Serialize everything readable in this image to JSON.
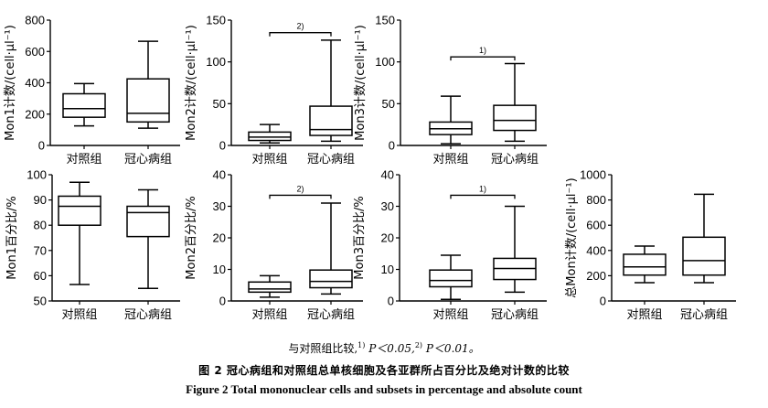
{
  "chart_data": [
    {
      "type": "box",
      "ylabel": "Mon1计数/(cell·μl⁻¹)",
      "ylim": [
        0,
        800
      ],
      "yticks": [
        "0",
        "200",
        "400",
        "600",
        "800"
      ],
      "categories": [
        "对照组",
        "冠心病组"
      ],
      "boxes": [
        {
          "min": 125,
          "q1": 180,
          "median": 235,
          "q3": 330,
          "max": 395
        },
        {
          "min": 110,
          "q1": 150,
          "median": 205,
          "q3": 425,
          "max": 665
        }
      ],
      "significance": null
    },
    {
      "type": "box",
      "ylabel": "Mon2计数/(cell·μl⁻¹)",
      "ylim": [
        0,
        150
      ],
      "yticks": [
        "0",
        "50",
        "100",
        "150"
      ],
      "categories": [
        "对照组",
        "冠心病组"
      ],
      "boxes": [
        {
          "min": 3,
          "q1": 6,
          "median": 10,
          "q3": 16,
          "max": 25
        },
        {
          "min": 5,
          "q1": 12,
          "median": 19,
          "q3": 47,
          "max": 126
        }
      ],
      "significance": {
        "label": "2)",
        "level": 135
      }
    },
    {
      "type": "box",
      "ylabel": "Mon3计数/(cell·μl⁻¹)",
      "ylim": [
        0,
        150
      ],
      "yticks": [
        "0",
        "50",
        "100",
        "150"
      ],
      "categories": [
        "对照组",
        "冠心病组"
      ],
      "boxes": [
        {
          "min": 2,
          "q1": 13,
          "median": 20,
          "q3": 28,
          "max": 59
        },
        {
          "min": 5,
          "q1": 18,
          "median": 30,
          "q3": 48,
          "max": 98
        }
      ],
      "significance": {
        "label": "1)",
        "level": 106
      }
    },
    {
      "type": "box",
      "ylabel": "Mon1百分比/%",
      "ylim": [
        50,
        100
      ],
      "yticks": [
        "50",
        "60",
        "70",
        "80",
        "90",
        "100"
      ],
      "categories": [
        "对照组",
        "冠心病组"
      ],
      "boxes": [
        {
          "min": 56.5,
          "q1": 80,
          "median": 87.5,
          "q3": 91.5,
          "max": 97
        },
        {
          "min": 55,
          "q1": 75.5,
          "median": 85,
          "q3": 87.5,
          "max": 94
        }
      ],
      "significance": null
    },
    {
      "type": "box",
      "ylabel": "Mon2百分比/%",
      "ylim": [
        0,
        40
      ],
      "yticks": [
        "0",
        "10",
        "20",
        "30",
        "40"
      ],
      "categories": [
        "对照组",
        "冠心病组"
      ],
      "boxes": [
        {
          "min": 1.2,
          "q1": 2.8,
          "median": 3.8,
          "q3": 6,
          "max": 8
        },
        {
          "min": 2.2,
          "q1": 4.2,
          "median": 6.2,
          "q3": 9.8,
          "max": 31
        }
      ],
      "significance": {
        "label": "2)",
        "level": 33.5
      }
    },
    {
      "type": "box",
      "ylabel": "Mon3百分比/%",
      "ylim": [
        0,
        40
      ],
      "yticks": [
        "0",
        "10",
        "20",
        "30",
        "40"
      ],
      "categories": [
        "对照组",
        "冠心病组"
      ],
      "boxes": [
        {
          "min": 0.5,
          "q1": 4.5,
          "median": 6.5,
          "q3": 9.8,
          "max": 14.5
        },
        {
          "min": 2.8,
          "q1": 6.8,
          "median": 10.3,
          "q3": 13.5,
          "max": 30
        }
      ],
      "significance": {
        "label": "1)",
        "level": 33.5
      }
    },
    {
      "type": "box",
      "ylabel": "总Mon计数/(cell·μl⁻¹)",
      "ylim": [
        0,
        1000
      ],
      "yticks": [
        "0",
        "200",
        "400",
        "600",
        "800",
        "1000"
      ],
      "categories": [
        "对照组",
        "冠心病组"
      ],
      "boxes": [
        {
          "min": 145,
          "q1": 205,
          "median": 270,
          "q3": 370,
          "max": 435
        },
        {
          "min": 145,
          "q1": 205,
          "median": 320,
          "q3": 505,
          "max": 845
        }
      ],
      "significance": null
    }
  ],
  "captions": {
    "note_text": "与对照组比较,",
    "note_sup1": "1)",
    "note_p1": " P＜0.05,",
    "note_sup2": "2)",
    "note_p2": " P＜0.01。",
    "title_cn": "图 2   冠心病组和对照组总单核细胞及各亚群所占百分比及绝对计数的比较",
    "title_en": "Figure 2    Total mononuclear cells and subsets in percentage and absolute count"
  }
}
